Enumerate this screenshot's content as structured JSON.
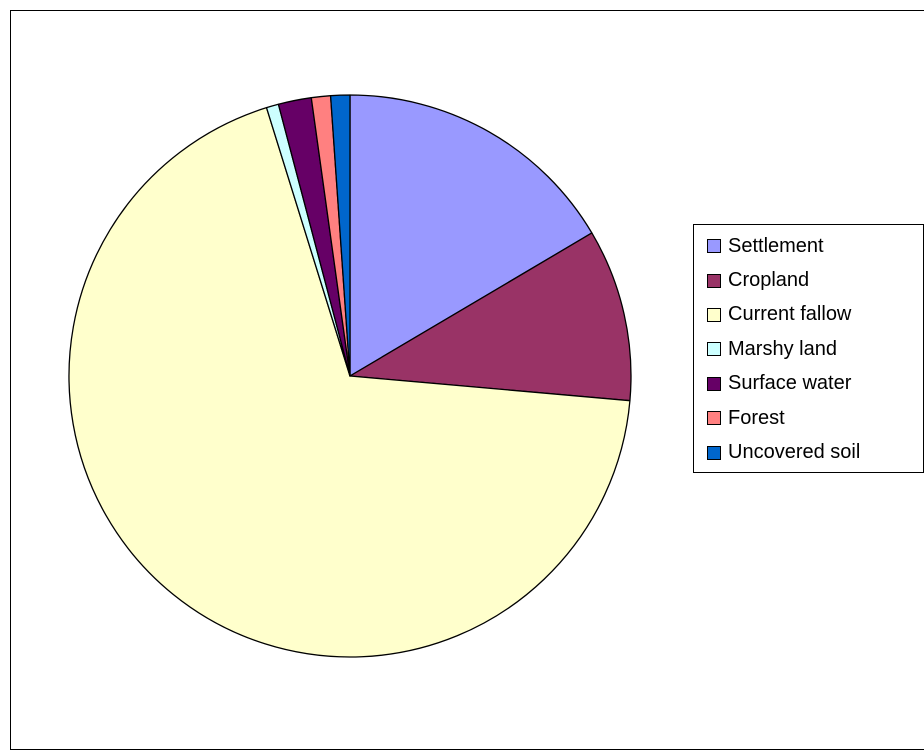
{
  "chart_data": {
    "type": "pie",
    "title": "",
    "start_angle_deg": 90,
    "direction": "clockwise",
    "legend_position": "right",
    "slices": [
      {
        "label": "Settlement",
        "value": 16.5,
        "color": "#9999FF"
      },
      {
        "label": "Cropland",
        "value": 9.9,
        "color": "#993366"
      },
      {
        "label": "Current fallow",
        "value": 68.8,
        "color": "#FFFFCC"
      },
      {
        "label": "Marshy land",
        "value": 0.7,
        "color": "#CCFFFF"
      },
      {
        "label": "Surface water",
        "value": 1.9,
        "color": "#660066"
      },
      {
        "label": "Forest",
        "value": 1.1,
        "color": "#FF8080"
      },
      {
        "label": "Uncovered soil",
        "value": 1.1,
        "color": "#0066CC"
      }
    ]
  }
}
